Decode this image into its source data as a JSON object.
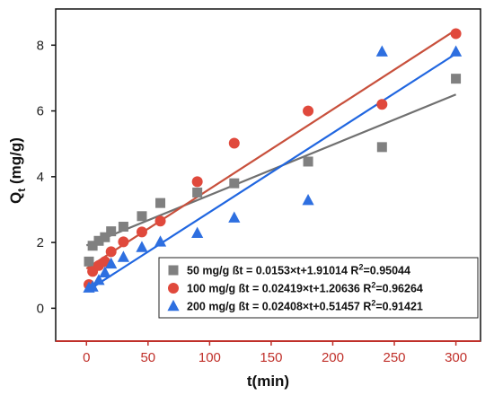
{
  "chart_data": {
    "type": "scatter",
    "xlabel": "t(min)",
    "ylabel_main": "Q",
    "ylabel_sub": "t",
    "ylabel_unit": " (mg/g)",
    "xlim": [
      -25,
      320
    ],
    "ylim": [
      -1,
      9.1
    ],
    "x_ticks": [
      0,
      50,
      100,
      150,
      200,
      250,
      300
    ],
    "y_ticks": [
      0,
      2,
      4,
      6,
      8
    ],
    "x_tick_labels": [
      "0",
      "50",
      "100",
      "150",
      "200",
      "250",
      "300"
    ],
    "y_tick_labels": [
      "0",
      "2",
      "4",
      "6",
      "8"
    ],
    "legend_position": "bottom-right",
    "series": [
      {
        "name": "50  mg/g",
        "marker": "square",
        "color": "#808080",
        "line_color": "#707070",
        "equation": "ßt = 0.0153×t+1.91014",
        "r2_label": "R",
        "r2_sup": "2",
        "r2_value": "=0.95044",
        "slope": 0.0153,
        "intercept": 1.91014,
        "x": [
          2,
          5,
          10,
          15,
          20,
          30,
          45,
          60,
          90,
          120,
          180,
          240,
          300
        ],
        "y": [
          1.42,
          1.9,
          2.05,
          2.16,
          2.34,
          2.48,
          2.8,
          3.2,
          3.52,
          3.8,
          4.46,
          4.9,
          6.98
        ]
      },
      {
        "name": "100 mg/g",
        "marker": "circle",
        "color": "#e0493c",
        "line_color": "#c8503c",
        "equation": "ßt = 0.02419×t+1.20636",
        "r2_label": "R",
        "r2_sup": "2",
        "r2_value": "=0.96264",
        "slope": 0.02419,
        "intercept": 1.20636,
        "x": [
          2,
          5,
          10,
          15,
          20,
          30,
          45,
          60,
          90,
          120,
          180,
          240,
          300
        ],
        "y": [
          0.72,
          1.12,
          1.3,
          1.42,
          1.72,
          2.02,
          2.32,
          2.65,
          3.85,
          5.02,
          6.0,
          6.2,
          8.35
        ]
      },
      {
        "name": "200 mg/g",
        "marker": "triangle",
        "color": "#2e6fe0",
        "line_color": "#2066e0",
        "equation": "ßt = 0.02408×t+0.51457",
        "r2_label": "R",
        "r2_sup": "2",
        "r2_value": "=0.91421",
        "slope": 0.02408,
        "intercept": 0.51457,
        "x": [
          2,
          5,
          10,
          15,
          20,
          30,
          45,
          60,
          90,
          120,
          180,
          240,
          300
        ],
        "y": [
          0.62,
          0.65,
          0.85,
          1.08,
          1.35,
          1.55,
          1.85,
          2.02,
          2.28,
          2.75,
          3.28,
          7.8,
          7.8
        ]
      }
    ]
  }
}
